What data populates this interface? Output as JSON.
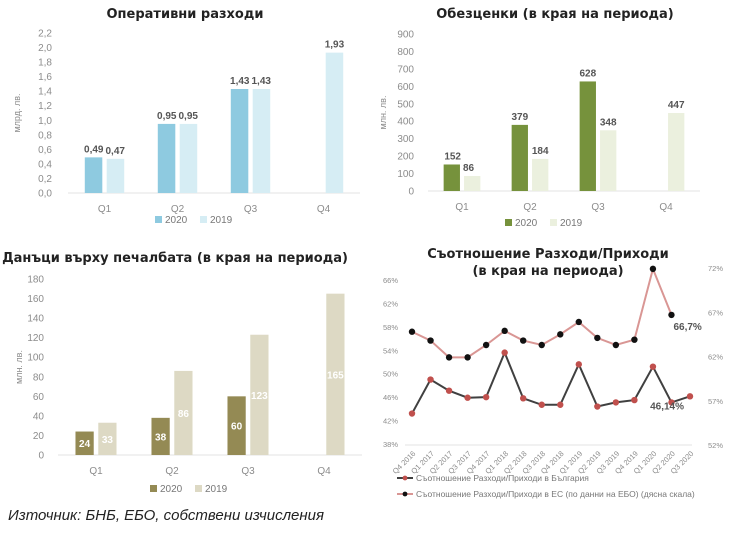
{
  "source_note": "Източник: БНБ, ЕБО, собствени изчисления",
  "chart_data": [
    {
      "id": "opex",
      "type": "bar",
      "title": "Оперативни разходи",
      "ylabel": "млрд. лв.",
      "xlabel": "",
      "ylim": [
        0,
        2.2
      ],
      "yticks": [
        0,
        0.2,
        0.4,
        0.6,
        0.8,
        1.0,
        1.2,
        1.4,
        1.6,
        1.8,
        2.0,
        2.2
      ],
      "ytick_labels": [
        "0,0",
        "0,2",
        "0,4",
        "0,6",
        "0,8",
        "1,0",
        "1,2",
        "1,4",
        "1,6",
        "1,8",
        "2,0",
        "2,2"
      ],
      "categories": [
        "Q1",
        "Q2",
        "Q3",
        "Q4"
      ],
      "series": [
        {
          "name": "2020",
          "color": "#8ecae0",
          "values": [
            0.49,
            0.95,
            1.43,
            null
          ],
          "labels": [
            "0,49",
            "0,95",
            "1,43",
            ""
          ]
        },
        {
          "name": "2019",
          "color": "#d6edf4",
          "values": [
            0.47,
            0.95,
            1.43,
            1.93
          ],
          "labels": [
            "0,47",
            "0,95",
            "1,43",
            "1,93"
          ]
        }
      ],
      "label_position": "above",
      "legend": "bottom"
    },
    {
      "id": "impairments",
      "type": "bar",
      "title": "Обезценки (в края на периода)",
      "ylabel": "млн. лв.",
      "xlabel": "",
      "ylim": [
        0,
        900
      ],
      "yticks": [
        0,
        100,
        200,
        300,
        400,
        500,
        600,
        700,
        800,
        900
      ],
      "ytick_labels": [
        "0",
        "100",
        "200",
        "300",
        "400",
        "500",
        "600",
        "700",
        "800",
        "900"
      ],
      "categories": [
        "Q1",
        "Q2",
        "Q3",
        "Q4"
      ],
      "series": [
        {
          "name": "2020",
          "color": "#76923c",
          "values": [
            152,
            379,
            628,
            null
          ],
          "labels": [
            "152",
            "379",
            "628",
            ""
          ]
        },
        {
          "name": "2019",
          "color": "#ebf0de",
          "values": [
            86,
            184,
            348,
            447
          ],
          "labels": [
            "86",
            "184",
            "348",
            "447"
          ]
        }
      ],
      "label_position": "above",
      "legend": "bottom"
    },
    {
      "id": "taxes",
      "type": "bar",
      "title": "Данъци върху печалбата (в края на периода)",
      "ylabel": "млн. лв.",
      "xlabel": "",
      "ylim": [
        0,
        180
      ],
      "yticks": [
        0,
        20,
        40,
        60,
        80,
        100,
        120,
        140,
        160,
        180
      ],
      "ytick_labels": [
        "0",
        "20",
        "40",
        "60",
        "80",
        "100",
        "120",
        "140",
        "160",
        "180"
      ],
      "categories": [
        "Q1",
        "Q2",
        "Q3",
        "Q4"
      ],
      "series": [
        {
          "name": "2020",
          "color": "#948a54",
          "values": [
            24,
            38,
            60,
            null
          ],
          "labels": [
            "24",
            "38",
            "60",
            ""
          ]
        },
        {
          "name": "2019",
          "color": "#ddd9c4",
          "values": [
            33,
            86,
            123,
            165
          ],
          "labels": [
            "33",
            "86",
            "123",
            "165"
          ]
        }
      ],
      "label_position": "inside",
      "legend": "bottom"
    },
    {
      "id": "cost_income",
      "type": "line",
      "title": "Съотношение Разходи/Приходи",
      "subtitle": "(в края на периода)",
      "x": [
        "Q4 2016",
        "Q1 2017",
        "Q2 2017",
        "Q3 2017",
        "Q4 2017",
        "Q1 2018",
        "Q2 2018",
        "Q3 2018",
        "Q4 2018",
        "Q1 2019",
        "Q2 2019",
        "Q3 2019",
        "Q4 2019",
        "Q1 2020",
        "Q2 2020",
        "Q3 2020"
      ],
      "ylim_left": [
        38,
        66
      ],
      "yticks_left": [
        38,
        42,
        46,
        50,
        54,
        58,
        62,
        66
      ],
      "ytick_labels_left": [
        "38%",
        "42%",
        "46%",
        "50%",
        "54%",
        "58%",
        "62%",
        "66%"
      ],
      "ylim_right": [
        52,
        72
      ],
      "yticks_right": [
        52,
        57,
        62,
        67,
        72
      ],
      "ytick_labels_right": [
        "52%",
        "57%",
        "62%",
        "67%",
        "72%"
      ],
      "series": [
        {
          "name": "Съотношение Разходи/Приходи в България",
          "axis": "left",
          "line_color": "#404040",
          "marker_color": "#c0504d",
          "values": [
            43.2,
            49.0,
            47.1,
            45.9,
            46.0,
            53.6,
            45.8,
            44.7,
            44.7,
            51.6,
            44.4,
            45.1,
            45.5,
            51.2,
            45.1,
            46.14
          ],
          "end_label": "46,14%"
        },
        {
          "name": "Съотношение Разходи/Приходи в ЕС (по данни на ЕБО) (дясна скала)",
          "axis": "right",
          "line_color": "#d99694",
          "marker_color": "#111111",
          "values": [
            64.8,
            63.8,
            61.9,
            61.9,
            63.3,
            64.9,
            63.8,
            63.3,
            64.5,
            65.9,
            64.1,
            63.3,
            63.9,
            71.9,
            66.7,
            null
          ],
          "end_label": "66,7%"
        }
      ],
      "legend": "bottom"
    }
  ]
}
